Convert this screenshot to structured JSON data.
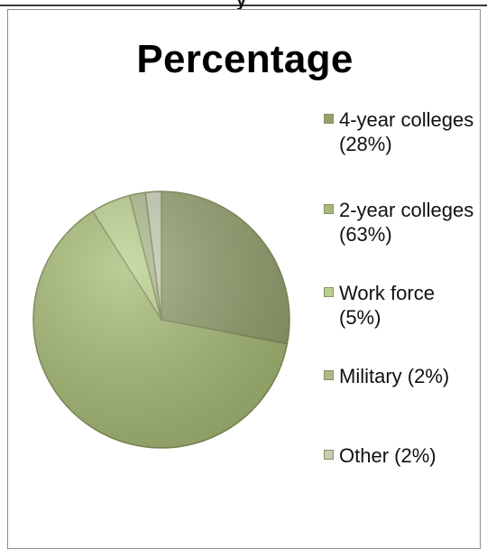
{
  "chart_data": {
    "type": "pie",
    "title": "Percentage",
    "categories": [
      "4-year colleges",
      "2-year colleges",
      "Work force",
      "Military",
      "Other"
    ],
    "values": [
      28,
      63,
      5,
      2,
      2
    ],
    "legend_labels": [
      "4-year colleges (28%)",
      "2-year colleges (63%)",
      "Work force (5%)",
      "Military (2%)",
      "Other (2%)"
    ],
    "legend_position": "right",
    "colors": [
      "#92a06c",
      "#a6bc74",
      "#b8d08a",
      "#aab98a",
      "#c6ccb4"
    ]
  }
}
